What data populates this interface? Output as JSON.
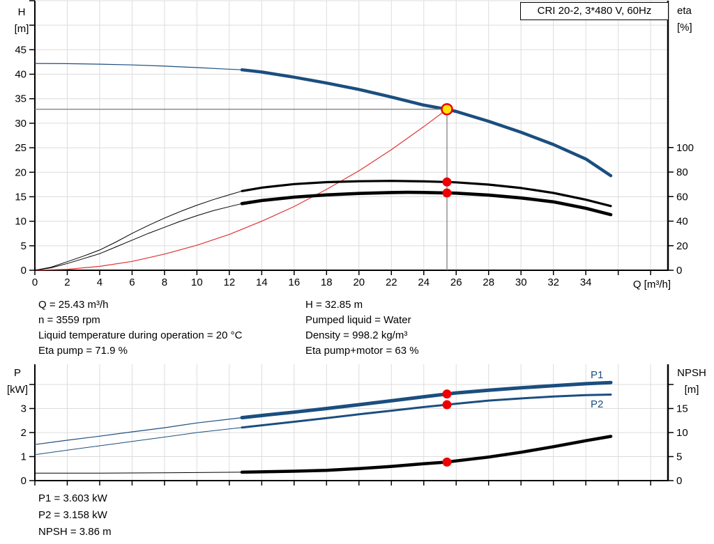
{
  "title_box": "CRI 20-2, 3*480 V, 60Hz",
  "colors": {
    "curve_blue": "#1b4e7f",
    "curve_black": "#000000",
    "curve_red": "#e03333",
    "dot_red": "#ee0000",
    "duty_yellow": "#ffe30a",
    "grid": "#dcdcdc",
    "crosshair": "#777777",
    "axis": "#000000"
  },
  "annotations": {
    "left": [
      "Q = 25.43 m³/h",
      "n = 3559 rpm",
      "Liquid temperature during operation = 20 °C",
      "Eta pump = 71.9 %"
    ],
    "right": [
      "H = 32.85 m",
      "Pumped liquid = Water",
      "Density = 998.2 kg/m³",
      "Eta pump+motor = 63 %"
    ],
    "bottom": [
      "P1 = 3.603 kW",
      "P2 = 3.158 kW",
      "NPSH = 3.86 m"
    ]
  },
  "chart_data": [
    {
      "type": "line",
      "name": "head-efficiency-chart",
      "x_axis": {
        "title": "Q [m³/h]",
        "min": 0,
        "max": 39.07,
        "ticks": [
          0,
          2,
          4,
          6,
          8,
          10,
          12,
          14,
          16,
          18,
          20,
          22,
          24,
          26,
          28,
          30,
          32,
          34,
          36,
          38
        ],
        "tick_labels": [
          "0",
          "2",
          "4",
          "6",
          "8",
          "10",
          "12",
          "14",
          "16",
          "18",
          "20",
          "22",
          "24",
          "26",
          "28",
          "30",
          "32",
          "34",
          "",
          ""
        ],
        "grid": [
          2,
          4,
          6,
          8,
          10,
          12,
          14,
          16,
          18,
          20,
          22,
          24,
          26,
          28,
          30,
          32,
          34,
          36,
          38
        ]
      },
      "left_axis": {
        "title_lines": [
          "H",
          "[m]"
        ],
        "min": 0,
        "max": 55,
        "ticks": [
          0,
          5,
          10,
          15,
          20,
          25,
          30,
          35,
          40,
          45,
          50,
          55
        ],
        "tick_labels": [
          "0",
          "5",
          "10",
          "15",
          "20",
          "25",
          "30",
          "35",
          "40",
          "45",
          "",
          ""
        ],
        "grid": [
          5,
          10,
          15,
          20,
          25,
          30,
          35,
          40,
          45,
          50,
          55
        ]
      },
      "right_axis": {
        "title_lines": [
          "eta",
          "[%]"
        ],
        "min": 0,
        "max": 219.6,
        "ticks": [
          0,
          20,
          40,
          60,
          80,
          100
        ],
        "tick_labels": [
          "0",
          "20",
          "40",
          "60",
          "80",
          "100"
        ],
        "grid": []
      },
      "crosshair": {
        "q": 25.43,
        "v": 32.85,
        "axis": "left"
      },
      "series": [
        {
          "name": "system-curve",
          "axis": "left",
          "color": "curve_red",
          "width_thin": 1.2,
          "width_thick": 1.2,
          "split_q": null,
          "points": [
            [
              0,
              0
            ],
            [
              2,
              0.2
            ],
            [
              4,
              0.8
            ],
            [
              6,
              1.8
            ],
            [
              8,
              3.3
            ],
            [
              10,
              5.1
            ],
            [
              12,
              7.3
            ],
            [
              14,
              10
            ],
            [
              16,
              13
            ],
            [
              18,
              16.5
            ],
            [
              20,
              20.3
            ],
            [
              22,
              24.6
            ],
            [
              24,
              29.3
            ],
            [
              25.43,
              32.85
            ]
          ]
        },
        {
          "name": "eta-pump",
          "axis": "right",
          "color": "curve_black",
          "width_thin": 1,
          "width_thick": 3.2,
          "split_q": 12.78,
          "points": [
            [
              0,
              0
            ],
            [
              1,
              2.5
            ],
            [
              2,
              7
            ],
            [
              3,
              11.5
            ],
            [
              4,
              16.5
            ],
            [
              5,
              23
            ],
            [
              6,
              30
            ],
            [
              7,
              36.5
            ],
            [
              8,
              42.5
            ],
            [
              9,
              48
            ],
            [
              10,
              53
            ],
            [
              11,
              57.5
            ],
            [
              12,
              61.5
            ],
            [
              12.78,
              64.5
            ],
            [
              14,
              67.3
            ],
            [
              16,
              70.2
            ],
            [
              18,
              71.8
            ],
            [
              20,
              72.5
            ],
            [
              22,
              72.8
            ],
            [
              24,
              72.4
            ],
            [
              25.43,
              71.9
            ],
            [
              26,
              71.6
            ],
            [
              28,
              69.8
            ],
            [
              30,
              67
            ],
            [
              32,
              63
            ],
            [
              34,
              57.5
            ],
            [
              35.54,
              52.3
            ]
          ]
        },
        {
          "name": "eta-pump-motor",
          "axis": "right",
          "color": "curve_black",
          "width_thin": 1,
          "width_thick": 4.6,
          "split_q": 12.78,
          "points": [
            [
              0,
              0
            ],
            [
              1,
              2
            ],
            [
              2,
              5.5
            ],
            [
              3,
              9.5
            ],
            [
              4,
              13.5
            ],
            [
              5,
              19
            ],
            [
              6,
              24.5
            ],
            [
              7,
              30
            ],
            [
              8,
              35
            ],
            [
              9,
              40
            ],
            [
              10,
              44.5
            ],
            [
              11,
              48.5
            ],
            [
              12,
              51.8
            ],
            [
              12.78,
              54.3
            ],
            [
              14,
              56.8
            ],
            [
              16,
              59.6
            ],
            [
              18,
              61.4
            ],
            [
              20,
              62.6
            ],
            [
              22,
              63.3
            ],
            [
              23,
              63.5
            ],
            [
              24,
              63.4
            ],
            [
              25.43,
              63
            ],
            [
              26,
              62.8
            ],
            [
              28,
              61.2
            ],
            [
              30,
              58.9
            ],
            [
              32,
              55.7
            ],
            [
              34,
              50.5
            ],
            [
              35.54,
              45.3
            ]
          ]
        },
        {
          "name": "H-curve",
          "axis": "left",
          "color": "curve_blue",
          "width_thin": 1.2,
          "width_thick": 4.5,
          "split_q": 12.78,
          "points": [
            [
              0,
              42.2
            ],
            [
              2,
              42.15
            ],
            [
              4,
              42.05
            ],
            [
              6,
              41.9
            ],
            [
              8,
              41.65
            ],
            [
              10,
              41.35
            ],
            [
              11.5,
              41.1
            ],
            [
              12.78,
              40.9
            ],
            [
              14,
              40.45
            ],
            [
              16,
              39.4
            ],
            [
              18,
              38.2
            ],
            [
              20,
              36.9
            ],
            [
              22,
              35.35
            ],
            [
              24,
              33.7
            ],
            [
              25.43,
              32.85
            ],
            [
              26,
              32.4
            ],
            [
              28,
              30.4
            ],
            [
              30,
              28.15
            ],
            [
              32,
              25.65
            ],
            [
              34,
              22.7
            ],
            [
              35.54,
              19.3
            ]
          ]
        }
      ],
      "markers": [
        {
          "q": 25.43,
          "v": 71.9,
          "axis": "right",
          "style": "dot"
        },
        {
          "q": 25.43,
          "v": 63,
          "axis": "right",
          "style": "dot"
        },
        {
          "q": 25.43,
          "v": 32.85,
          "axis": "left",
          "style": "duty"
        }
      ],
      "duty_point": {
        "Q": 25.43,
        "H": 32.85,
        "eta_pump": 71.9,
        "eta_pump_motor": 63
      }
    },
    {
      "type": "line",
      "name": "power-npsh-chart",
      "x_axis": {
        "title": "",
        "min": 0,
        "max": 39.07,
        "ticks": [
          0,
          2,
          4,
          6,
          8,
          10,
          12,
          14,
          16,
          18,
          20,
          22,
          24,
          26,
          28,
          30,
          32,
          34,
          36,
          38
        ],
        "tick_labels": [
          "",
          "",
          "",
          "",
          "",
          "",
          "",
          "",
          "",
          "",
          "",
          "",
          "",
          "",
          "",
          "",
          "",
          "",
          "",
          ""
        ],
        "grid": [
          2,
          4,
          6,
          8,
          10,
          12,
          14,
          16,
          18,
          20,
          22,
          24,
          26,
          28,
          30,
          32,
          34,
          36,
          38
        ]
      },
      "left_axis": {
        "title_lines": [
          "P",
          "[kW]"
        ],
        "min": 0,
        "max": 4.84,
        "ticks": [
          0,
          1,
          2,
          3,
          4
        ],
        "tick_labels": [
          "0",
          "1",
          "2",
          "3",
          ""
        ],
        "grid": [
          1,
          2,
          3,
          4
        ]
      },
      "right_axis": {
        "title_lines": [
          "NPSH",
          "[m]"
        ],
        "min": 0,
        "max": 24.2,
        "ticks": [
          0,
          5,
          10,
          15,
          20
        ],
        "tick_labels": [
          "0",
          "5",
          "10",
          "15",
          ""
        ],
        "grid": []
      },
      "crosshair": null,
      "series": [
        {
          "name": "P1",
          "axis": "left",
          "color": "curve_blue",
          "width_thin": 1.2,
          "width_thick": 5,
          "split_q": 12.78,
          "points": [
            [
              0,
              1.5
            ],
            [
              2,
              1.68
            ],
            [
              4,
              1.85
            ],
            [
              6,
              2.03
            ],
            [
              8,
              2.2
            ],
            [
              10,
              2.4
            ],
            [
              12.78,
              2.62
            ],
            [
              14,
              2.71
            ],
            [
              16,
              2.85
            ],
            [
              18,
              3.0
            ],
            [
              20,
              3.16
            ],
            [
              22,
              3.32
            ],
            [
              24,
              3.49
            ],
            [
              25.43,
              3.603
            ],
            [
              26,
              3.65
            ],
            [
              28,
              3.76
            ],
            [
              30,
              3.86
            ],
            [
              32,
              3.95
            ],
            [
              34,
              4.03
            ],
            [
              35.54,
              4.08
            ]
          ]
        },
        {
          "name": "P2",
          "axis": "left",
          "color": "curve_blue",
          "width_thin": 1,
          "width_thick": 3,
          "split_q": 12.78,
          "points": [
            [
              0,
              1.08
            ],
            [
              2,
              1.27
            ],
            [
              4,
              1.45
            ],
            [
              6,
              1.63
            ],
            [
              8,
              1.81
            ],
            [
              10,
              2.0
            ],
            [
              12.78,
              2.21
            ],
            [
              14,
              2.3
            ],
            [
              16,
              2.45
            ],
            [
              18,
              2.6
            ],
            [
              20,
              2.76
            ],
            [
              22,
              2.91
            ],
            [
              24,
              3.06
            ],
            [
              25.43,
              3.158
            ],
            [
              26,
              3.2
            ],
            [
              28,
              3.33
            ],
            [
              30,
              3.42
            ],
            [
              32,
              3.5
            ],
            [
              34,
              3.56
            ],
            [
              35.54,
              3.58
            ]
          ]
        },
        {
          "name": "NPSH",
          "axis": "right",
          "color": "curve_black",
          "width_thin": 1,
          "width_thick": 4.5,
          "split_q": 12.78,
          "points": [
            [
              0,
              1.55
            ],
            [
              2,
              1.55
            ],
            [
              4,
              1.57
            ],
            [
              6,
              1.6
            ],
            [
              8,
              1.63
            ],
            [
              10,
              1.68
            ],
            [
              12.78,
              1.76
            ],
            [
              14,
              1.82
            ],
            [
              16,
              1.95
            ],
            [
              18,
              2.15
            ],
            [
              20,
              2.5
            ],
            [
              22,
              2.95
            ],
            [
              24,
              3.5
            ],
            [
              25.43,
              3.86
            ],
            [
              26,
              4.1
            ],
            [
              28,
              4.9
            ],
            [
              30,
              5.9
            ],
            [
              32,
              7.05
            ],
            [
              34,
              8.3
            ],
            [
              35.54,
              9.2
            ]
          ]
        }
      ],
      "markers": [
        {
          "q": 25.43,
          "v": 3.603,
          "axis": "left",
          "style": "dot"
        },
        {
          "q": 25.43,
          "v": 3.158,
          "axis": "left",
          "style": "dot"
        },
        {
          "q": 25.43,
          "v": 3.86,
          "axis": "right",
          "style": "dot"
        }
      ],
      "duty_point": {
        "Q": 25.43,
        "P1": 3.603,
        "P2": 3.158,
        "NPSH": 3.86
      }
    }
  ]
}
